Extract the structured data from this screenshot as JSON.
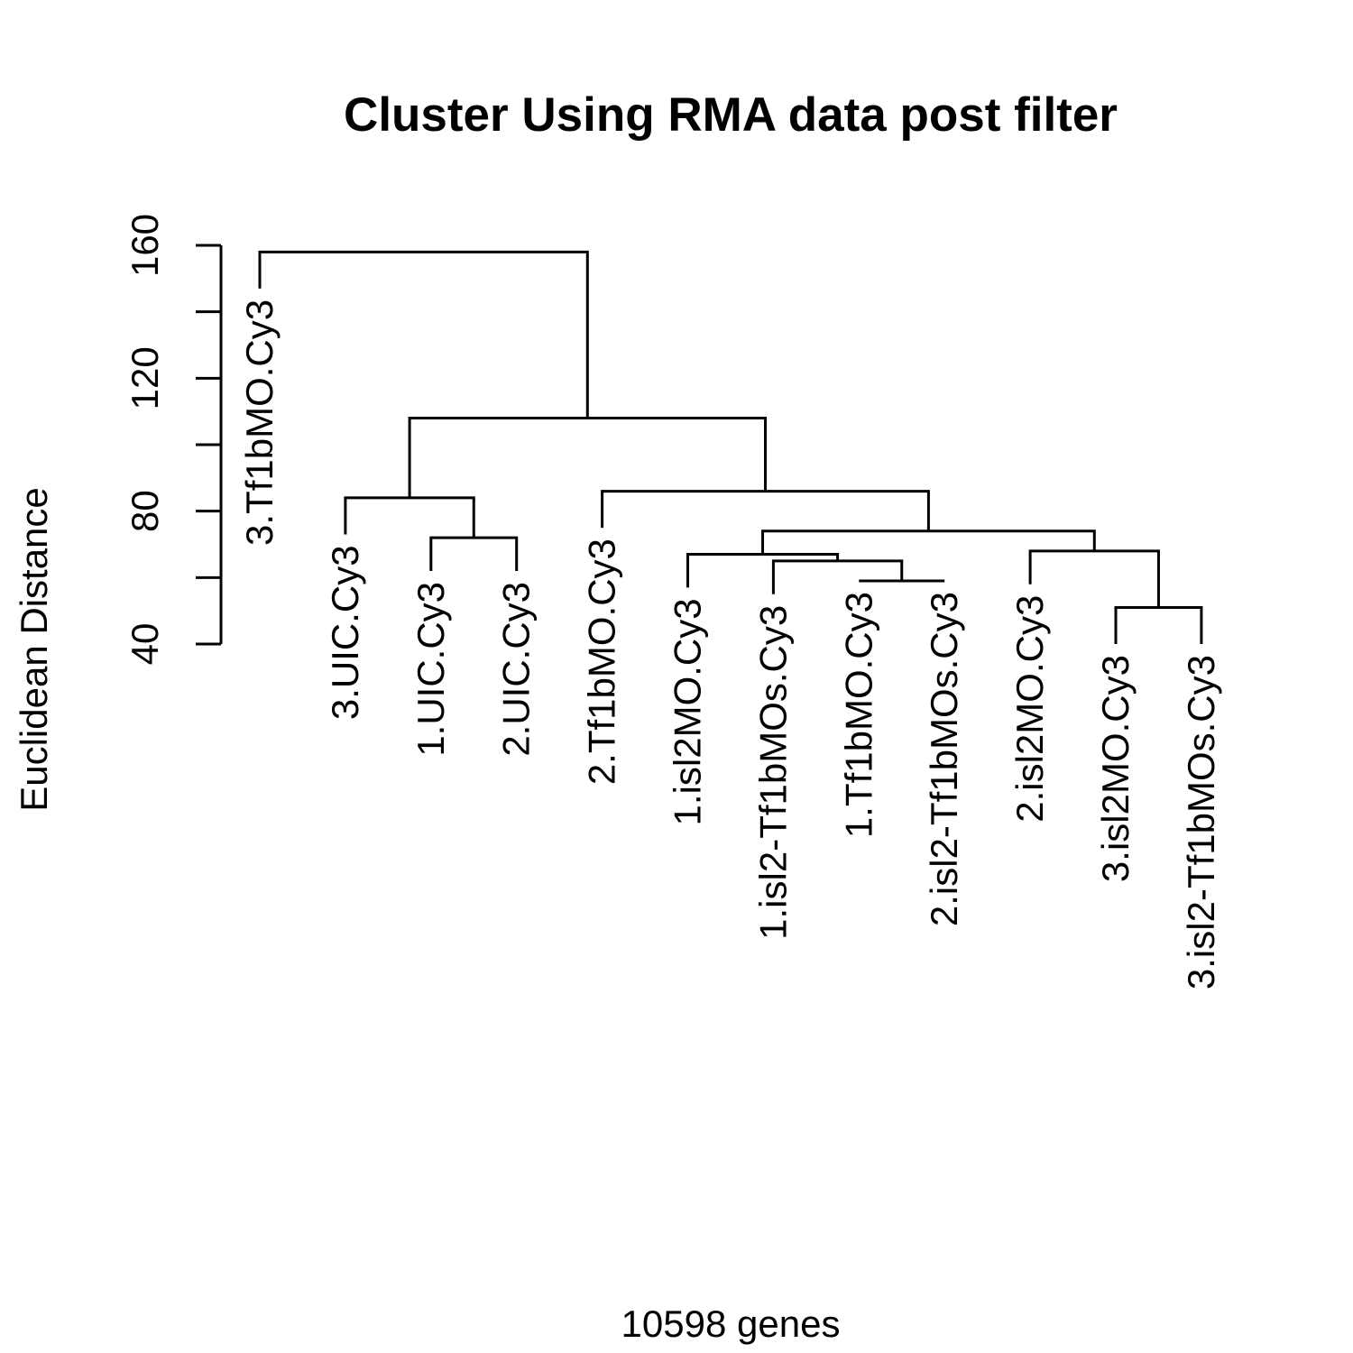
{
  "chart_data": {
    "type": "dendrogram",
    "title": "Cluster Using RMA data post filter",
    "xlabel": "10598 genes",
    "ylabel": "Euclidean Distance",
    "y_ticks": [
      40,
      80,
      120,
      160
    ],
    "y_minor_ticks": [
      40,
      60,
      80,
      100,
      120,
      140,
      160
    ],
    "ylim": [
      40,
      160
    ],
    "leaves": [
      "3.Tf1bMO.Cy3",
      "3.UIC.Cy3",
      "1.UIC.Cy3",
      "2.UIC.Cy3",
      "2.Tf1bMO.Cy3",
      "1.isl2MO.Cy3",
      "1.isl2-Tf1bMOs.Cy3",
      "1.Tf1bMO.Cy3",
      "2.isl2-Tf1bMOs.Cy3",
      "2.isl2MO.Cy3",
      "3.isl2MO.Cy3",
      "3.isl2-Tf1bMOs.Cy3"
    ],
    "leaf_label_heights": [
      147,
      73,
      62,
      62,
      75,
      57,
      55,
      59,
      59,
      58,
      40,
      40
    ],
    "merges": [
      {
        "left": "L2",
        "right": "L3",
        "height": 72
      },
      {
        "left": "L10",
        "right": "L11",
        "height": 51
      },
      {
        "left": "L7",
        "right": "L8",
        "height": 59
      },
      {
        "left": "L6",
        "right": "M3",
        "height": 65
      },
      {
        "left": "L9",
        "right": "M2",
        "height": 68
      },
      {
        "left": "L5",
        "right": "M4",
        "height": 67
      },
      {
        "left": "L1",
        "right": "M1",
        "height": 84
      },
      {
        "left": "M6",
        "right": "M5",
        "height": 74
      },
      {
        "left": "L4",
        "right": "M8",
        "height": 86
      },
      {
        "left": "M7",
        "right": "M9",
        "height": 108
      },
      {
        "left": "L0",
        "right": "M10",
        "height": 158
      }
    ]
  }
}
